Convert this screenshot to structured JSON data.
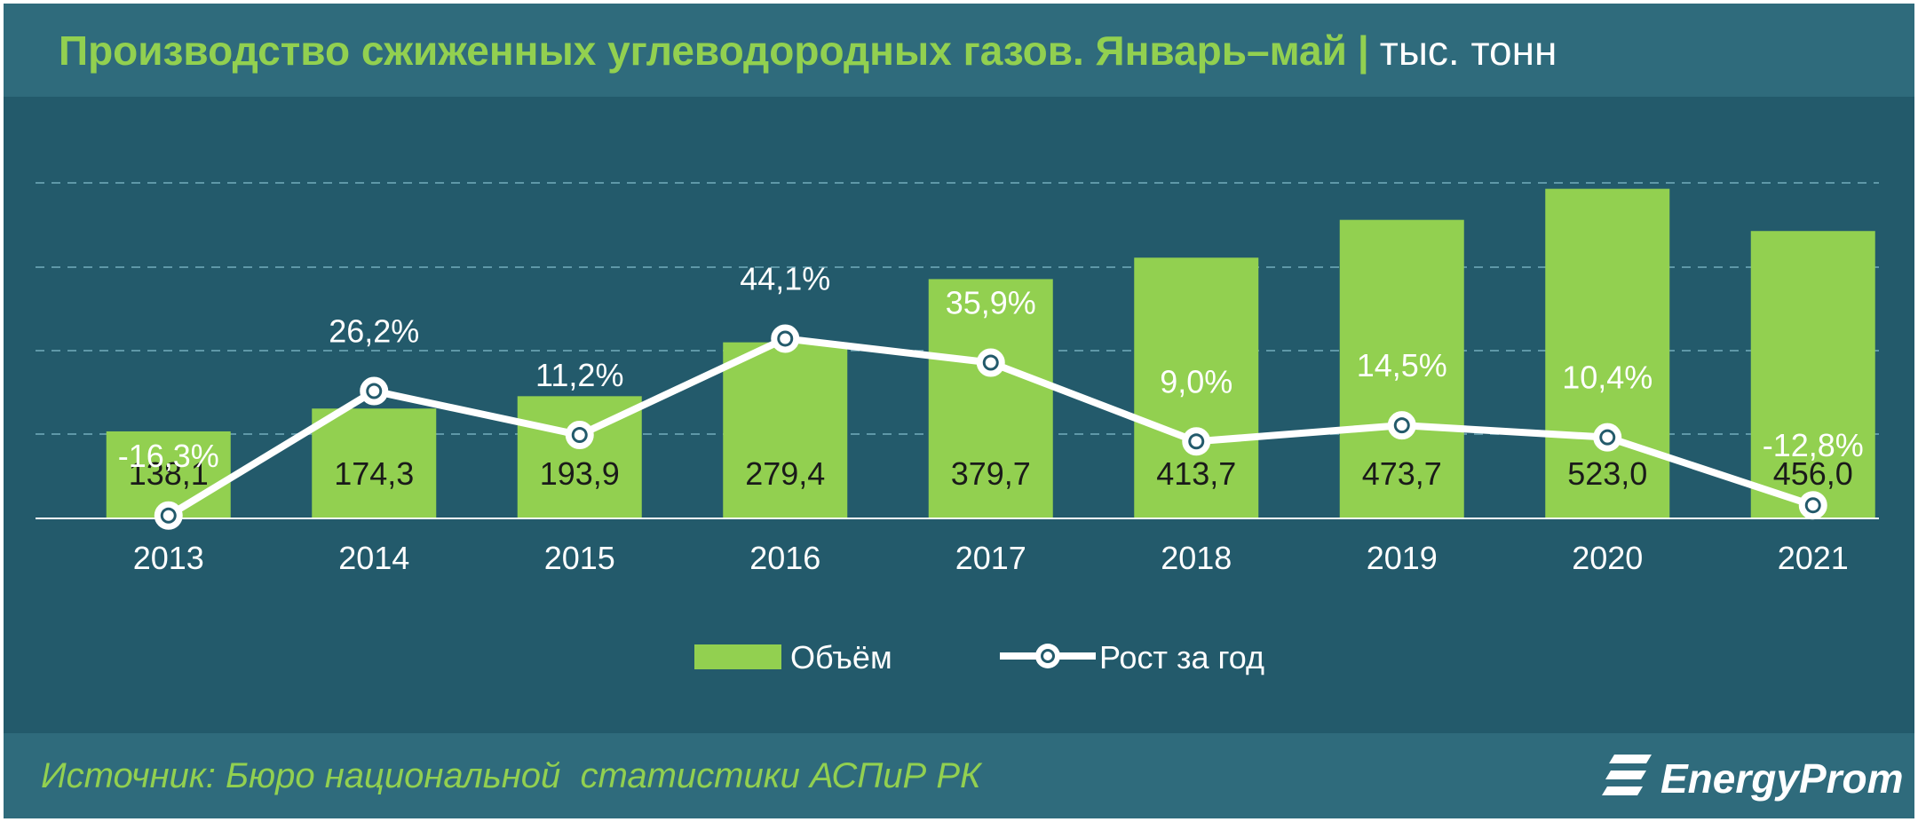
{
  "title": {
    "main": "Производство сжиженных углеводородных газов. Январь–май",
    "separator": "|",
    "unit": "тыс. тонн"
  },
  "source": "Источник: Бюро национальной  статистики АСПиР РК",
  "brand": {
    "name": "EnergyProm",
    "icon": "energyprom-logo-icon"
  },
  "colors": {
    "background": "#235a6b",
    "panel": "#2f6b7c",
    "bar": "#92d050",
    "line": "#ffffff",
    "accent_text": "#92d050"
  },
  "chart_data": {
    "type": "bar",
    "categories": [
      "2013",
      "2014",
      "2015",
      "2016",
      "2017",
      "2018",
      "2019",
      "2020",
      "2021"
    ],
    "series": [
      {
        "name": "Объём",
        "type": "bar",
        "values": [
          138.1,
          174.3,
          193.9,
          279.4,
          379.7,
          413.7,
          473.7,
          523.0,
          456.0
        ],
        "labels": [
          "138,1",
          "174,3",
          "193,9",
          "279,4",
          "379,7",
          "413,7",
          "473,7",
          "523,0",
          "456,0"
        ]
      },
      {
        "name": "Рост за год",
        "type": "line",
        "values": [
          -16.3,
          26.2,
          11.2,
          44.1,
          35.9,
          9.0,
          14.5,
          10.4,
          -12.8
        ],
        "labels": [
          "-16,3%",
          "26,2%",
          "11,2%",
          "44,1%",
          "35,9%",
          "9,0%",
          "14,5%",
          "10,4%",
          "-12,8%"
        ]
      }
    ],
    "ylim": [
      0,
      600
    ],
    "y2lim": [
      -100,
      70
    ],
    "grid": "dashed horizontal",
    "legend": "bottom-center"
  }
}
